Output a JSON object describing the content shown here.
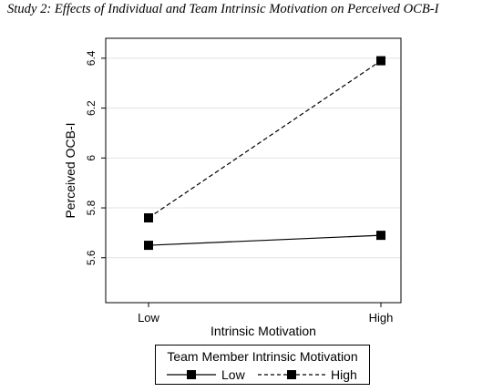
{
  "title": "Study 2: Effects of Individual and Team Intrinsic Motivation on Perceived OCB-I",
  "chart_data": {
    "type": "line",
    "xlabel": "Intrinsic Motivation",
    "ylabel": "Perceived OCB-I",
    "categories": [
      "Low",
      "High"
    ],
    "ylim": [
      5.42,
      6.48
    ],
    "yticks": [
      5.6,
      5.8,
      6,
      6.2,
      6.4
    ],
    "ytick_labels": [
      "5.6",
      "5.8",
      "6",
      "6.2",
      "6.4"
    ],
    "grid": true,
    "legend_title": "Team Member Intrinsic Motivation",
    "legend_position": "bottom",
    "series": [
      {
        "name": "Low",
        "values": [
          5.65,
          5.69
        ],
        "line_style": "solid",
        "marker": "square",
        "color": "#000000"
      },
      {
        "name": "High",
        "values": [
          5.76,
          6.39
        ],
        "line_style": "dashed",
        "marker": "square",
        "color": "#000000"
      }
    ]
  }
}
